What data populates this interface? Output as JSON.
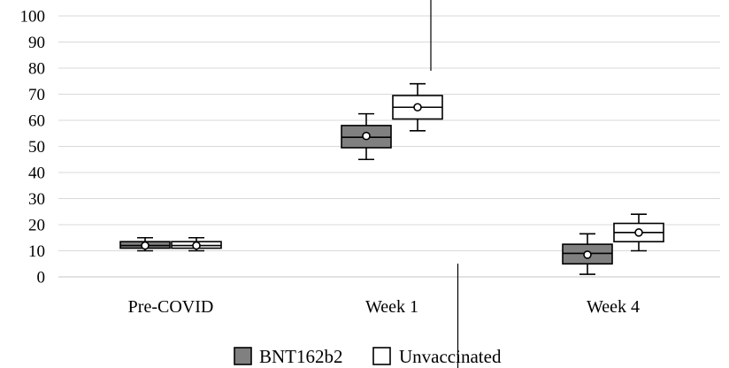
{
  "chart_data": {
    "type": "box",
    "categories": [
      "Pre-COVID",
      "Week 1",
      "Week 4"
    ],
    "ylim": [
      0,
      100
    ],
    "y_ticks": [
      0,
      10,
      20,
      30,
      40,
      50,
      60,
      70,
      80,
      90,
      100
    ],
    "grid": true,
    "legend_position": "bottom",
    "series": [
      {
        "name": "BNT162b2",
        "color": "#808080",
        "boxes": [
          {
            "min": 10,
            "q1": 11,
            "median": 12,
            "q3": 13.5,
            "max": 15,
            "mean": 12
          },
          {
            "min": 45,
            "q1": 49.5,
            "median": 53.5,
            "q3": 58,
            "max": 62.5,
            "mean": 54
          },
          {
            "min": 1,
            "q1": 5,
            "median": 9,
            "q3": 12.5,
            "max": 16.5,
            "mean": 8.5
          }
        ]
      },
      {
        "name": "Unvaccinated",
        "color": "#ffffff",
        "boxes": [
          {
            "min": 10,
            "q1": 11,
            "median": 12,
            "q3": 13.5,
            "max": 15,
            "mean": 12
          },
          {
            "min": 56,
            "q1": 60.5,
            "median": 65,
            "q3": 69.5,
            "max": 74,
            "mean": 65
          },
          {
            "min": 10,
            "q1": 13.5,
            "median": 17,
            "q3": 20.5,
            "max": 24,
            "mean": 17
          }
        ]
      }
    ]
  }
}
